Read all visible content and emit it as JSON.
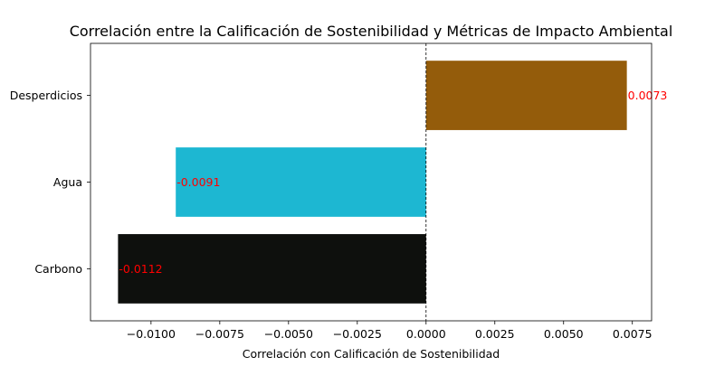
{
  "chart_data": {
    "type": "bar",
    "orientation": "horizontal",
    "title": "Correlación entre la Calificación de Sostenibilidad y Métricas de Impacto Ambiental",
    "xlabel": "Correlación con Calificación de Sostenibilidad",
    "ylabel": "",
    "categories": [
      "Carbono",
      "Agua",
      "Desperdicios"
    ],
    "values": [
      -0.0112,
      -0.0091,
      0.0073
    ],
    "data_labels": [
      "-0.0112",
      "-0.0091",
      "0.0073"
    ],
    "colors": [
      "#0e100d",
      "#1db7d2",
      "#945c0b"
    ],
    "xlim": [
      -0.0122,
      0.0082
    ],
    "xticks": [
      -0.01,
      -0.0075,
      -0.005,
      -0.0025,
      0.0,
      0.0025,
      0.005,
      0.0075
    ],
    "xtick_labels": [
      "−0.0100",
      "−0.0075",
      "−0.0050",
      "−0.0025",
      "0.0000",
      "0.0025",
      "0.0050",
      "0.0075"
    ],
    "zero_line": "dashed",
    "grid": false,
    "legend": "none"
  }
}
